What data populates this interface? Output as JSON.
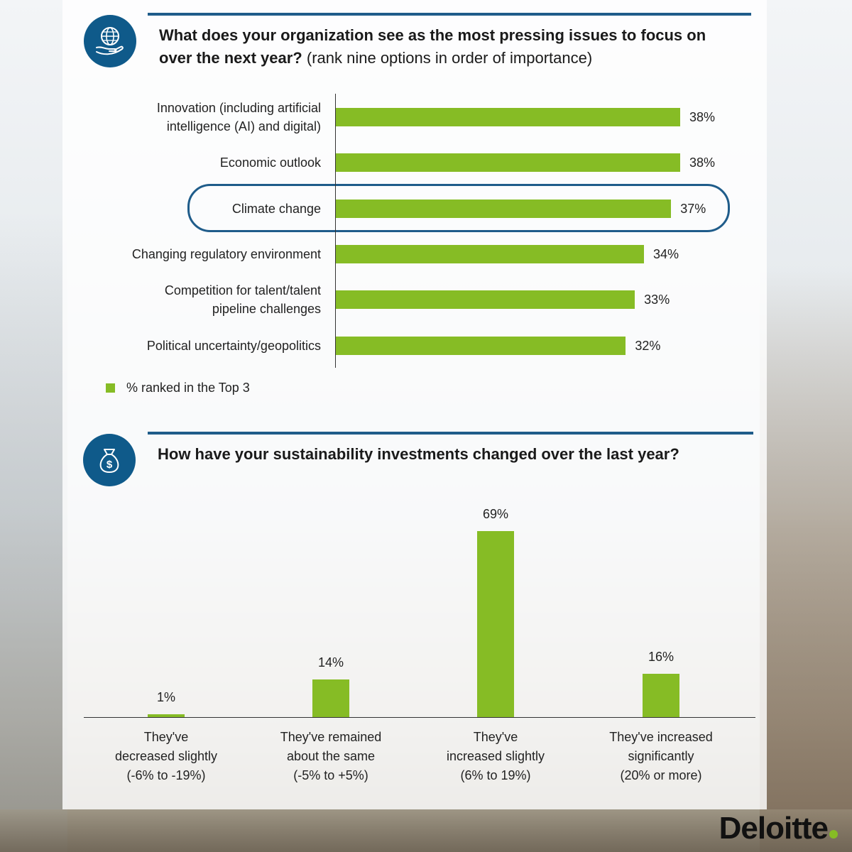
{
  "colors": {
    "bar": "#86bc25",
    "accent": "#1f5c8a",
    "icon_bg": "#0f5a8a"
  },
  "section1": {
    "icon": "globe-in-hand-icon",
    "title_bold": "What does your organization see as the most pressing issues to focus on over the next year?",
    "title_line1": "What does your organization see as the most pressing issues to focus on",
    "title_line2_bold": "over the next year?",
    "title_line2_sub": "(rank nine options in order of importance)",
    "legend": "% ranked in the Top 3",
    "highlighted": "Climate change"
  },
  "section2": {
    "icon": "money-bag-icon",
    "title": "How have your sustainability investments changed over the last year?"
  },
  "chart_data": [
    {
      "type": "bar",
      "orientation": "horizontal",
      "categories": [
        [
          "Innovation (including artificial",
          "intelligence (AI) and digital)"
        ],
        [
          "Economic outlook"
        ],
        [
          "Climate change"
        ],
        [
          "Changing regulatory environment"
        ],
        [
          "Competition for talent/talent",
          "pipeline challenges"
        ],
        [
          "Political uncertainty/geopolitics"
        ]
      ],
      "values": [
        38,
        38,
        37,
        34,
        33,
        32
      ],
      "labels": [
        "38%",
        "38%",
        "37%",
        "34%",
        "33%",
        "32%"
      ],
      "series": [
        {
          "name": "% ranked in the Top 3",
          "values": [
            38,
            38,
            37,
            34,
            33,
            32
          ]
        }
      ],
      "legend_position": "bottom-left"
    },
    {
      "type": "bar",
      "orientation": "vertical",
      "categories": [
        [
          "They've",
          "decreased slightly",
          "(-6% to -19%)"
        ],
        [
          "They've remained",
          "about the same",
          "(-5% to +5%)"
        ],
        [
          "They've",
          "increased slightly",
          "(6% to 19%)"
        ],
        [
          "They've increased",
          "significantly",
          "(20% or more)"
        ]
      ],
      "values": [
        1,
        14,
        69,
        16
      ],
      "labels": [
        "1%",
        "14%",
        "69%",
        "16%"
      ]
    }
  ],
  "logo": {
    "text": "Deloitte"
  }
}
